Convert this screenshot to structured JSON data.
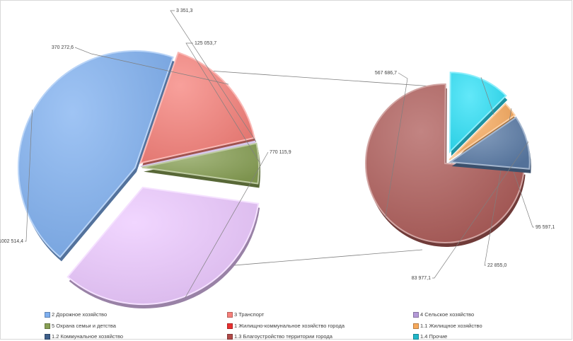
{
  "chart_data": {
    "type": "pie",
    "kind": "pie-of-pie",
    "main_pie": {
      "slices": [
        {
          "name": "2 Дорожное хозяйство",
          "value": 1002514.4,
          "label": "1002 514,4",
          "color": "#7fb0f0"
        },
        {
          "name": "3 Транспорт",
          "value": 370272.6,
          "label": "370 272,6",
          "color": "#f6807a"
        },
        {
          "name": "4 Сельское хозяйство",
          "value": 3351.3,
          "label": "3 351,3",
          "color": "#b59ad8"
        },
        {
          "name": "5 Охрана семьи и детства",
          "value": 125053.7,
          "label": "125 053,7",
          "color": "#88a055"
        },
        {
          "name": "1 Жилищно-коммунальное хозяйство города",
          "value": 770115.9,
          "label": "770 115,9",
          "color": "#ecc8ff"
        }
      ]
    },
    "secondary_pie": {
      "slices": [
        {
          "name": "1.3 Благоустройство территории города",
          "value": 567686.7,
          "label": "567 686,7",
          "color": "#ad5b58"
        },
        {
          "name": "1.4 Прочие",
          "value": 95597.1,
          "label": "95 597,1",
          "color": "#2de0f7"
        },
        {
          "name": "1.1 Жилищное хозяйство",
          "value": 22855.0,
          "label": "22 855,0",
          "color": "#f7a95c"
        },
        {
          "name": "1.2 Коммунальное хозяйство",
          "value": 83977.1,
          "label": "83 977,1",
          "color": "#5a7ba6"
        }
      ]
    },
    "legend": [
      {
        "label": "2 Дорожное хозяйство",
        "color": "#7fb0f0"
      },
      {
        "label": "3 Транспорт",
        "color": "#f6807a"
      },
      {
        "label": "4 Сельское хозяйство",
        "color": "#b59ad8"
      },
      {
        "label": "5 Охрана семьи и детства",
        "color": "#88a055"
      },
      {
        "label": "1 Жилищно-коммунальное  хозяйство города",
        "color": "#e83030"
      },
      {
        "label": "1.1 Жилищное хозяйство",
        "color": "#f7a95c"
      },
      {
        "label": "1.2 Коммунальное хозяйство",
        "color": "#3e5f8a"
      },
      {
        "label": "1.3 Благоустройство территории города",
        "color": "#b04a48"
      },
      {
        "label": "1.4 Прочие",
        "color": "#1fb6c8"
      }
    ],
    "legend_position": "bottom"
  }
}
